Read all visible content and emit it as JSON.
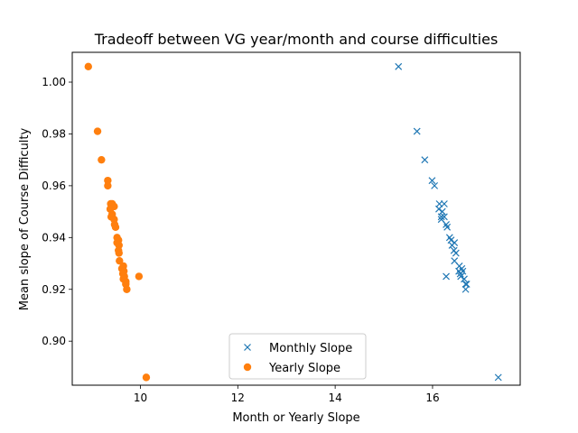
{
  "chart_data": {
    "type": "scatter",
    "title": "Tradeoff between VG year/month and course difficulties",
    "xlabel": "Month or Yearly Slope",
    "ylabel": "Mean slope of Course Difficulty",
    "xlim": [
      8.6,
      17.8
    ],
    "ylim": [
      0.883,
      1.0115
    ],
    "xticks": [
      10,
      12,
      14,
      16
    ],
    "xtick_labels": [
      "10",
      "12",
      "14",
      "16"
    ],
    "yticks": [
      0.9,
      0.92,
      0.94,
      0.96,
      0.98,
      1.0
    ],
    "ytick_labels": [
      "0.90",
      "0.92",
      "0.94",
      "0.96",
      "0.98",
      "1.00"
    ],
    "grid": false,
    "legend_position": "bottom-center",
    "series": [
      {
        "name": "Monthly Slope",
        "marker": "x",
        "color": "#1f77b4",
        "points": [
          [
            15.3,
            1.006
          ],
          [
            15.68,
            0.981
          ],
          [
            15.84,
            0.97
          ],
          [
            15.99,
            0.962
          ],
          [
            16.04,
            0.96
          ],
          [
            16.14,
            0.953
          ],
          [
            16.24,
            0.953
          ],
          [
            16.13,
            0.951
          ],
          [
            16.2,
            0.95
          ],
          [
            16.18,
            0.948
          ],
          [
            16.24,
            0.948
          ],
          [
            16.18,
            0.947
          ],
          [
            16.28,
            0.945
          ],
          [
            16.3,
            0.944
          ],
          [
            16.35,
            0.94
          ],
          [
            16.38,
            0.939
          ],
          [
            16.45,
            0.938
          ],
          [
            16.4,
            0.937
          ],
          [
            16.44,
            0.935
          ],
          [
            16.48,
            0.934
          ],
          [
            16.45,
            0.931
          ],
          [
            16.55,
            0.929
          ],
          [
            16.6,
            0.928
          ],
          [
            16.54,
            0.927
          ],
          [
            16.62,
            0.927
          ],
          [
            16.57,
            0.926
          ],
          [
            16.58,
            0.925
          ],
          [
            16.28,
            0.925
          ],
          [
            16.65,
            0.924
          ],
          [
            16.68,
            0.922
          ],
          [
            16.7,
            0.922
          ],
          [
            16.68,
            0.92
          ],
          [
            17.35,
            0.886
          ]
        ]
      },
      {
        "name": "Yearly Slope",
        "marker": "o",
        "color": "#ff7f0e",
        "points": [
          [
            8.93,
            1.006
          ],
          [
            9.12,
            0.981
          ],
          [
            9.2,
            0.97
          ],
          [
            9.33,
            0.962
          ],
          [
            9.33,
            0.96
          ],
          [
            9.42,
            0.953
          ],
          [
            9.39,
            0.953
          ],
          [
            9.46,
            0.952
          ],
          [
            9.38,
            0.951
          ],
          [
            9.42,
            0.949
          ],
          [
            9.4,
            0.948
          ],
          [
            9.46,
            0.947
          ],
          [
            9.47,
            0.945
          ],
          [
            9.49,
            0.944
          ],
          [
            9.52,
            0.94
          ],
          [
            9.55,
            0.939
          ],
          [
            9.52,
            0.938
          ],
          [
            9.56,
            0.937
          ],
          [
            9.55,
            0.935
          ],
          [
            9.56,
            0.934
          ],
          [
            9.57,
            0.931
          ],
          [
            9.65,
            0.929
          ],
          [
            9.62,
            0.928
          ],
          [
            9.66,
            0.927
          ],
          [
            9.64,
            0.926
          ],
          [
            9.67,
            0.925
          ],
          [
            9.65,
            0.924
          ],
          [
            9.97,
            0.925
          ],
          [
            9.7,
            0.923
          ],
          [
            9.7,
            0.922
          ],
          [
            9.72,
            0.92
          ],
          [
            10.12,
            0.886
          ]
        ]
      }
    ]
  }
}
